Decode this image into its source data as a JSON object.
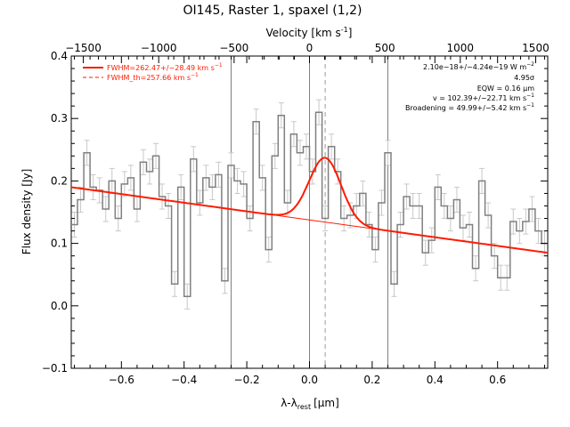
{
  "chart_data": {
    "type": "line",
    "title": "OI145, Raster 1, spaxel (1,2)",
    "xlabel": "λ-λ",
    "xlabel_sub": "rest",
    "xlabel_unit": "[μm]",
    "ylabel": "Flux density [Jy]",
    "top_axis_label": "Velocity [km s",
    "top_axis_label_sup": "-1",
    "top_axis_label_end": "]",
    "xlim": [
      -0.76,
      0.76
    ],
    "ylim": [
      -0.1,
      0.4
    ],
    "x_ticks": [
      -0.6,
      -0.4,
      -0.2,
      0.0,
      0.2,
      0.4,
      0.6
    ],
    "x_tick_labels": [
      "−0.6",
      "−0.4",
      "−0.2",
      "0.0",
      "0.2",
      "0.4",
      "0.6"
    ],
    "y_ticks": [
      -0.1,
      0.0,
      0.1,
      0.2,
      0.3,
      0.4
    ],
    "y_tick_labels": [
      "−0.1",
      "0.0",
      "0.1",
      "0.2",
      "0.3",
      "0.4"
    ],
    "velocity_lim": [
      -1580,
      1580
    ],
    "velocity_ticks": [
      -1500,
      -1000,
      -500,
      0,
      500,
      1000,
      1500
    ],
    "velocity_tick_labels": [
      "−1500",
      "−1000",
      "−500",
      "0",
      "500",
      "1000",
      "1500"
    ],
    "vertical_lines": [
      -0.25,
      0.0,
      0.25
    ],
    "dashed_line_x": 0.05,
    "spectrum": {
      "color": "#808080",
      "x": [
        -0.75,
        -0.73,
        -0.71,
        -0.69,
        -0.67,
        -0.65,
        -0.63,
        -0.61,
        -0.59,
        -0.57,
        -0.55,
        -0.53,
        -0.51,
        -0.49,
        -0.47,
        -0.45,
        -0.43,
        -0.41,
        -0.39,
        -0.37,
        -0.35,
        -0.33,
        -0.31,
        -0.29,
        -0.27,
        -0.25,
        -0.23,
        -0.21,
        -0.19,
        -0.17,
        -0.15,
        -0.13,
        -0.11,
        -0.09,
        -0.07,
        -0.05,
        -0.03,
        -0.01,
        0.01,
        0.03,
        0.05,
        0.07,
        0.09,
        0.11,
        0.13,
        0.15,
        0.17,
        0.19,
        0.21,
        0.23,
        0.25,
        0.27,
        0.29,
        0.31,
        0.33,
        0.35,
        0.37,
        0.39,
        0.41,
        0.43,
        0.45,
        0.47,
        0.49,
        0.51,
        0.53,
        0.55,
        0.57,
        0.59,
        0.61,
        0.63,
        0.65,
        0.67,
        0.69,
        0.71,
        0.73,
        0.75
      ],
      "y": [
        0.13,
        0.17,
        0.245,
        0.19,
        0.185,
        0.155,
        0.2,
        0.14,
        0.195,
        0.205,
        0.155,
        0.23,
        0.215,
        0.24,
        0.175,
        0.16,
        0.035,
        0.19,
        0.015,
        0.235,
        0.165,
        0.205,
        0.19,
        0.21,
        0.04,
        0.225,
        0.2,
        0.195,
        0.14,
        0.295,
        0.205,
        0.09,
        0.24,
        0.305,
        0.165,
        0.275,
        0.245,
        0.255,
        0.215,
        0.31,
        0.14,
        0.255,
        0.215,
        0.14,
        0.145,
        0.16,
        0.18,
        0.13,
        0.09,
        0.165,
        0.245,
        0.035,
        0.13,
        0.175,
        0.16,
        0.16,
        0.085,
        0.105,
        0.19,
        0.16,
        0.14,
        0.17,
        0.125,
        0.13,
        0.06,
        0.2,
        0.145,
        0.08,
        0.045,
        0.045,
        0.135,
        0.12,
        0.135,
        0.155,
        0.12,
        0.1
      ],
      "errors": [
        0.02,
        0.02,
        0.02,
        0.02,
        0.02,
        0.02,
        0.02,
        0.02,
        0.02,
        0.02,
        0.02,
        0.02,
        0.02,
        0.02,
        0.02,
        0.02,
        0.02,
        0.02,
        0.02,
        0.02,
        0.02,
        0.02,
        0.02,
        0.02,
        0.02,
        0.02,
        0.02,
        0.02,
        0.02,
        0.02,
        0.02,
        0.02,
        0.02,
        0.02,
        0.02,
        0.02,
        0.02,
        0.02,
        0.02,
        0.02,
        0.02,
        0.02,
        0.02,
        0.02,
        0.02,
        0.02,
        0.02,
        0.02,
        0.02,
        0.02,
        0.02,
        0.02,
        0.02,
        0.02,
        0.02,
        0.02,
        0.02,
        0.02,
        0.02,
        0.02,
        0.02,
        0.02,
        0.02,
        0.02,
        0.02,
        0.02,
        0.02,
        0.02,
        0.02,
        0.02,
        0.02,
        0.02,
        0.02,
        0.02,
        0.02,
        0.02
      ]
    },
    "fit": {
      "color": "#ff1a00",
      "baseline_start": [
        -0.76,
        0.19
      ],
      "baseline_end": [
        0.76,
        0.085
      ],
      "gaussian_center": 0.05,
      "gaussian_amplitude": 0.103,
      "gaussian_fwhm": 0.12
    },
    "legend": {
      "placement": "top-left",
      "entries": [
        {
          "style": "solid",
          "color": "#ff1a00",
          "label_main": "FWHM=262.47+/−28.49 km s",
          "label_sup": "−1"
        },
        {
          "style": "dashed",
          "color": "#ff1a00",
          "label_main": "FWHM_th=257.66 km s",
          "label_sup": "−1"
        }
      ]
    },
    "annotations": [
      {
        "main": "2.10e−18+/−4.24e−19 W m",
        "sup": "−2"
      },
      {
        "main": "4.95σ",
        "sup": ""
      },
      {
        "main": "EQW = 0.16 μm",
        "sup": ""
      },
      {
        "main": "v = 102.39+/−22.71 km s",
        "sup": "−1"
      },
      {
        "main": "Broadening = 49.99+/−5.42 km s",
        "sup": "−1"
      }
    ]
  }
}
